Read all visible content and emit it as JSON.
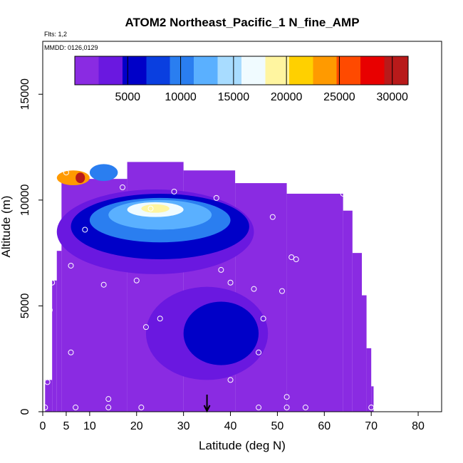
{
  "chart_data": {
    "type": "heatmap",
    "title": "ATOM2 Northeast_Pacific_1 N_fine_AMP",
    "subtitle_flights": "Flts: 1,2",
    "subtitle_dates": "MMDD: 0126,0129",
    "xlabel": "Latitude (deg N)",
    "ylabel": "Altitude (m)",
    "xlim": [
      0,
      85
    ],
    "ylim": [
      0,
      17500
    ],
    "x_ticks": [
      0,
      5,
      10,
      20,
      30,
      40,
      50,
      60,
      70,
      80
    ],
    "x_tick_labels": [
      "0",
      "5",
      "10",
      "20",
      "30",
      "40",
      "50",
      "60",
      "70",
      "80"
    ],
    "y_ticks": [
      0,
      5000,
      10000,
      15000
    ],
    "y_tick_labels": [
      "0",
      "5000",
      "10000",
      "15000"
    ],
    "colorbar": {
      "min": 0,
      "max": 31500,
      "ticks": [
        5000,
        10000,
        15000,
        20000,
        25000,
        30000
      ],
      "tick_labels": [
        "5000",
        "10000",
        "15000",
        "20000",
        "25000",
        "30000"
      ],
      "colors": [
        "#8a2be2",
        "#6a18e0",
        "#0000c8",
        "#0a3fe0",
        "#2a7ef0",
        "#5ab0ff",
        "#a8dcff",
        "#f0fbff",
        "#fff5a0",
        "#ffd000",
        "#ff9a00",
        "#ff4a00",
        "#e80000",
        "#b81a1a"
      ]
    },
    "marker": {
      "x": 35,
      "label": "arrow"
    },
    "profile_columns": [
      {
        "x0": 0.5,
        "x1": 2,
        "top": 1500,
        "v": 0
      },
      {
        "x0": 2,
        "x1": 3,
        "top": 6200,
        "v": 1000
      },
      {
        "x0": 3,
        "x1": 4,
        "top": 7600,
        "v": 1000
      },
      {
        "x0": 4,
        "x1": 18,
        "top": 11000,
        "v": 1500
      },
      {
        "x0": 18,
        "x1": 30,
        "top": 11800,
        "v": 1500
      },
      {
        "x0": 30,
        "x1": 41,
        "top": 11400,
        "v": 1200
      },
      {
        "x0": 41,
        "x1": 52,
        "top": 10800,
        "v": 800
      },
      {
        "x0": 52,
        "x1": 64,
        "top": 10300,
        "v": 600
      },
      {
        "x0": 64,
        "x1": 66,
        "top": 9500,
        "v": 500
      },
      {
        "x0": 66,
        "x1": 68,
        "top": 7500,
        "v": 400
      },
      {
        "x0": 68,
        "x1": 69,
        "top": 5500,
        "v": 300
      },
      {
        "x0": 69,
        "x1": 70,
        "top": 3000,
        "v": 300
      },
      {
        "x0": 70,
        "x1": 70.5,
        "top": 1200,
        "v": 300
      }
    ],
    "features": [
      {
        "kind": "band",
        "x0": 3,
        "x1": 45,
        "y0": 6500,
        "y1": 10500,
        "v": 2500
      },
      {
        "kind": "band",
        "x0": 6,
        "x1": 44,
        "y0": 7200,
        "y1": 10300,
        "v": 4500
      },
      {
        "kind": "band",
        "x0": 10,
        "x1": 40,
        "y0": 8000,
        "y1": 10100,
        "v": 9000
      },
      {
        "kind": "band",
        "x0": 14,
        "x1": 36,
        "y0": 8600,
        "y1": 10000,
        "v": 13000
      },
      {
        "kind": "band",
        "x0": 18,
        "x1": 30,
        "y0": 9200,
        "y1": 9900,
        "v": 17000
      },
      {
        "kind": "band",
        "x0": 21,
        "x1": 27,
        "y0": 9400,
        "y1": 9800,
        "v": 20000
      },
      {
        "kind": "band",
        "x0": 3,
        "x1": 10,
        "y0": 10700,
        "y1": 11400,
        "v": 23000
      },
      {
        "kind": "band",
        "x0": 7,
        "x1": 9,
        "y0": 10800,
        "y1": 11300,
        "v": 30000
      },
      {
        "kind": "band",
        "x0": 10,
        "x1": 16,
        "y0": 10900,
        "y1": 11700,
        "v": 9000
      },
      {
        "kind": "band",
        "x0": 22,
        "x1": 48,
        "y0": 1500,
        "y1": 5900,
        "v": 3500
      },
      {
        "kind": "band",
        "x0": 30,
        "x1": 46,
        "y0": 2200,
        "y1": 5200,
        "v": 5000
      }
    ],
    "sample_points": [
      [
        0.5,
        200
      ],
      [
        1,
        1400
      ],
      [
        1.5,
        4800
      ],
      [
        2,
        6100
      ],
      [
        3,
        10300
      ],
      [
        5,
        11300
      ],
      [
        6,
        6900
      ],
      [
        6,
        2800
      ],
      [
        7,
        200
      ],
      [
        9,
        8600
      ],
      [
        13,
        6000
      ],
      [
        14,
        600
      ],
      [
        14,
        200
      ],
      [
        17,
        10600
      ],
      [
        20,
        6200
      ],
      [
        21,
        200
      ],
      [
        22,
        4000
      ],
      [
        23,
        9600
      ],
      [
        25,
        4400
      ],
      [
        28,
        10400
      ],
      [
        37,
        10100
      ],
      [
        38,
        6700
      ],
      [
        40,
        6100
      ],
      [
        40,
        1500
      ],
      [
        45,
        5800
      ],
      [
        46,
        200
      ],
      [
        46,
        2800
      ],
      [
        47,
        4400
      ],
      [
        49,
        9200
      ],
      [
        51,
        5700
      ],
      [
        52,
        700
      ],
      [
        52,
        200
      ],
      [
        53,
        7300
      ],
      [
        54,
        7200
      ],
      [
        56,
        200
      ],
      [
        64,
        10300
      ],
      [
        70,
        200
      ]
    ]
  }
}
